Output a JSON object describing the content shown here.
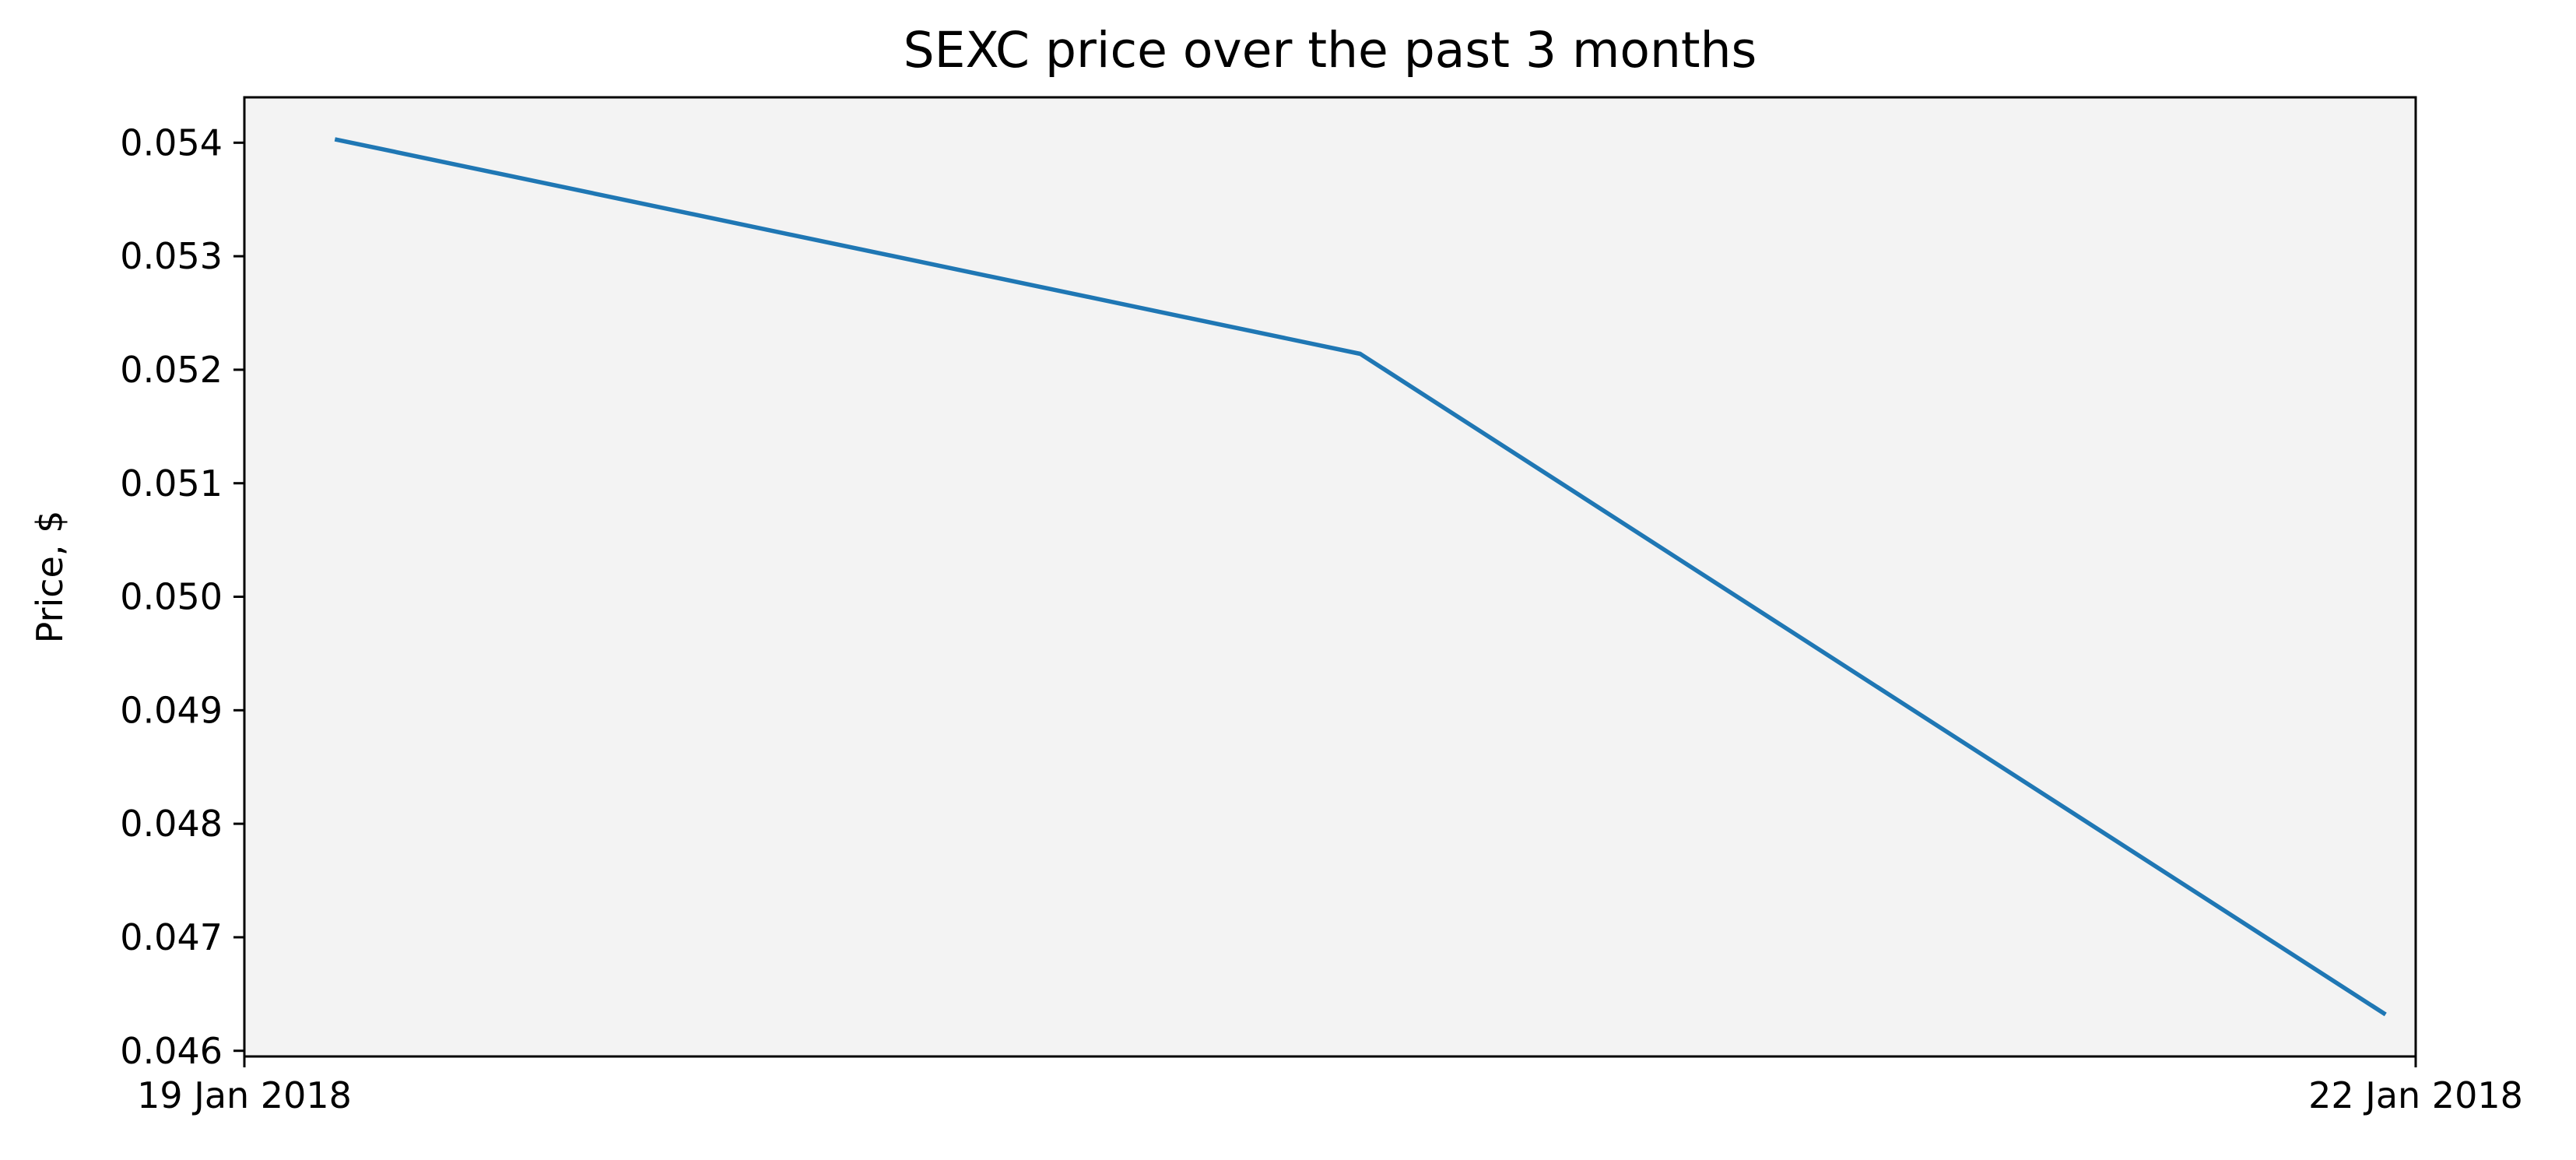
{
  "chart_data": {
    "type": "line",
    "title": "SEXC price over the past 3 months",
    "ylabel": "Price, $",
    "xlabel": "",
    "x_tick_labels": [
      "19 Jan 2018",
      "22 Jan 2018"
    ],
    "y_tick_labels": [
      "0.046",
      "0.047",
      "0.048",
      "0.049",
      "0.050",
      "0.051",
      "0.052",
      "0.053",
      "0.054"
    ],
    "ylim": [
      0.04595,
      0.0544
    ],
    "x_range_days": [
      0,
      3
    ],
    "grid": false,
    "legend": false,
    "series": [
      {
        "x": [
          "19 Jan 2018 ~03:00",
          "20 Jan 2018 ~13:00",
          "21 Jan 2018 ~23:00"
        ],
        "values": [
          0.05403,
          0.05214,
          0.04632
        ]
      }
    ],
    "colors": {
      "plot_background": "#f3f3f3",
      "line": "#1f77b4",
      "axes": "#000000"
    }
  }
}
